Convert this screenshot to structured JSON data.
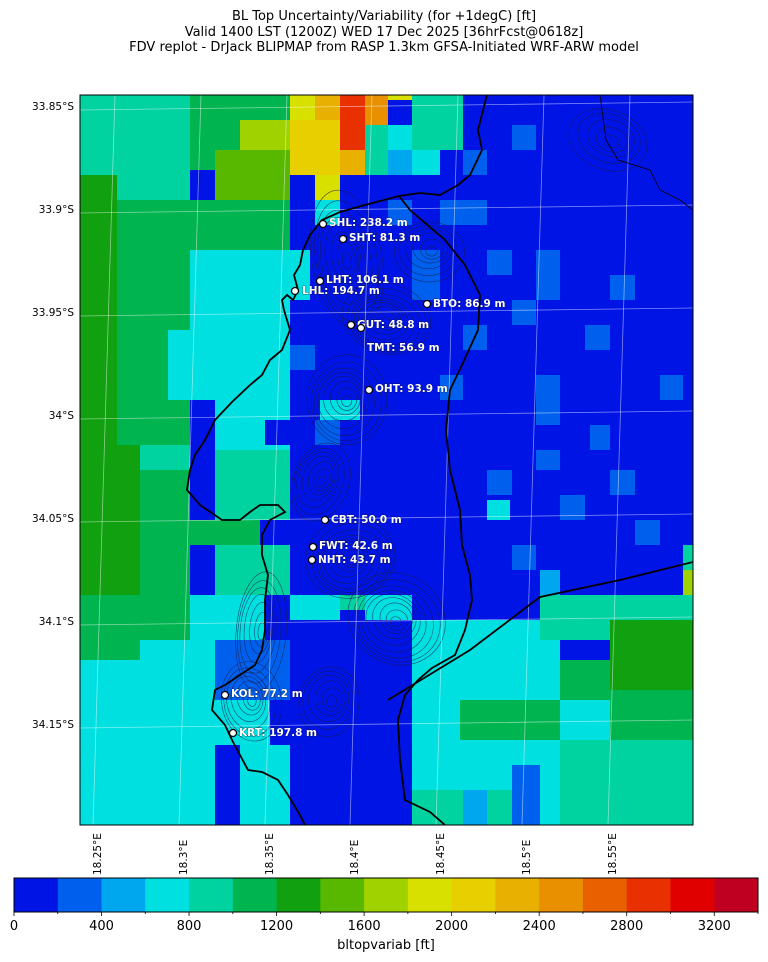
{
  "title_lines": [
    "BL Top Uncertainty/Variability (for +1degC) [ft]",
    "Valid 1400 LST (1200Z) WED 17 Dec 2025 [36hrFcst@0618z]",
    "FDV replot - DrJack BLIPMAP from RASP 1.3km GFSA-Initiated WRF-ARW model"
  ],
  "lat_labels": [
    "33.85°S",
    "33.9°S",
    "33.95°S",
    "34°S",
    "34.05°S",
    "34.1°S",
    "34.15°S"
  ],
  "lon_labels": [
    "18.25°E",
    "18.3°E",
    "18.35°E",
    "18.4°E",
    "18.45°E",
    "18.5°E",
    "18.55°E"
  ],
  "stations": [
    {
      "label": "SHL: 238.2 m"
    },
    {
      "label": "SHT: 81.3 m"
    },
    {
      "label": "LHT: 106.1 m"
    },
    {
      "label": "LHL: 194.7 m"
    },
    {
      "label": "BTO: 86.9 m"
    },
    {
      "label": "GUT: 48.8 m"
    },
    {
      "label": "TMT: 56.9 m"
    },
    {
      "label": "OHT: 93.9 m"
    },
    {
      "label": "CBT: 50.0 m"
    },
    {
      "label": "FWT: 42.6 m"
    },
    {
      "label": "NHT: 43.7 m"
    },
    {
      "label": "KOL: 77.2 m"
    },
    {
      "label": "KRT: 197.8 m"
    }
  ],
  "colorbar": {
    "label": "bltopvariab [ft]",
    "tick_labels": [
      "0",
      "400",
      "800",
      "1200",
      "1600",
      "2000",
      "2400",
      "2800",
      "3200"
    ],
    "min": 0,
    "max": 3400,
    "step": 200,
    "colors": [
      "#0014e6",
      "#0060ee",
      "#00a6ee",
      "#00e0e0",
      "#00d2a0",
      "#00b450",
      "#10a010",
      "#58b800",
      "#a0d200",
      "#d8e000",
      "#e8d000",
      "#e8b000",
      "#e89000",
      "#e86000",
      "#e83000",
      "#e00000",
      "#c00020"
    ]
  },
  "colors": {
    "coastline": "#000000",
    "contour": "#1a1a4a",
    "station_marker": "#000000",
    "label_text": "#ffffff"
  }
}
